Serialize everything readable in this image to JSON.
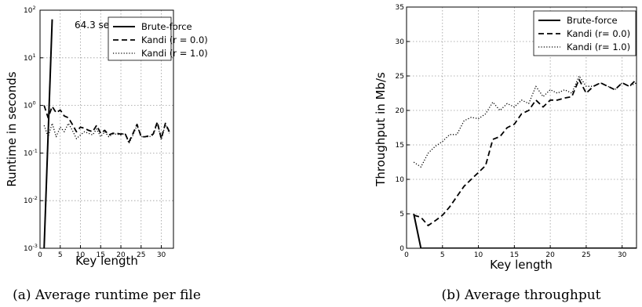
{
  "chart_data": [
    {
      "id": "a",
      "type": "line",
      "caption": "(a) Average runtime per file",
      "xlabel": "Key length",
      "ylabel": "Runtime in seconds",
      "xlim": [
        0,
        33
      ],
      "ylim": [
        0.001,
        100
      ],
      "yscale": "log",
      "x_ticks": [
        0,
        5,
        10,
        15,
        20,
        25,
        30
      ],
      "y_ticks": [
        {
          "value": 0.001,
          "base": "10",
          "exp": "-3"
        },
        {
          "value": 0.01,
          "base": "10",
          "exp": "-2"
        },
        {
          "value": 0.1,
          "base": "10",
          "exp": "-1"
        },
        {
          "value": 1,
          "base": "10",
          "exp": "0"
        },
        {
          "value": 10,
          "base": "10",
          "exp": "1"
        },
        {
          "value": 100,
          "base": "10",
          "exp": "2"
        }
      ],
      "grid": true,
      "legend_position": "top-right",
      "annotation": {
        "text": "64.3 seconds",
        "x": 4.2,
        "y": 64.3
      },
      "series": [
        {
          "name": "Brute-force",
          "style": "solid",
          "x": [
            1,
            3
          ],
          "y": [
            0.001,
            64.3
          ]
        },
        {
          "name": "Kandi (r = 0.0)",
          "style": "dashed",
          "x": [
            1,
            2,
            3,
            4,
            5,
            6,
            7,
            8,
            9,
            10,
            11,
            12,
            13,
            14,
            15,
            16,
            17,
            18,
            19,
            20,
            21,
            22,
            23,
            24,
            25,
            26,
            27,
            28,
            29,
            30,
            31,
            32
          ],
          "y": [
            1.0,
            0.55,
            0.95,
            0.7,
            0.8,
            0.6,
            0.55,
            0.4,
            0.28,
            0.35,
            0.33,
            0.3,
            0.28,
            0.38,
            0.26,
            0.3,
            0.24,
            0.26,
            0.26,
            0.25,
            0.26,
            0.17,
            0.26,
            0.4,
            0.22,
            0.22,
            0.23,
            0.25,
            0.45,
            0.2,
            0.42,
            0.28
          ]
        },
        {
          "name": "Kandi (r = 1.0)",
          "style": "dotted",
          "x": [
            1,
            2,
            3,
            4,
            5,
            6,
            7,
            8,
            9,
            10,
            11,
            12,
            13,
            14,
            15,
            16,
            17,
            18,
            19,
            20,
            21,
            22,
            23,
            24,
            25,
            26,
            27,
            28,
            29,
            30,
            31,
            32
          ],
          "y": [
            0.38,
            0.22,
            0.42,
            0.22,
            0.35,
            0.28,
            0.42,
            0.3,
            0.2,
            0.24,
            0.28,
            0.26,
            0.24,
            0.32,
            0.22,
            0.28,
            0.22,
            0.25,
            0.25,
            0.24,
            0.26,
            0.16,
            0.24,
            0.38,
            0.22,
            0.22,
            0.22,
            0.24,
            0.42,
            0.19,
            0.4,
            0.26
          ]
        }
      ]
    },
    {
      "id": "b",
      "type": "line",
      "caption": "(b) Average throughput",
      "xlabel": "Key length",
      "ylabel": "Throughput in Mb/s",
      "xlim": [
        0,
        32
      ],
      "ylim": [
        0,
        35
      ],
      "yscale": "linear",
      "x_ticks": [
        0,
        5,
        10,
        15,
        20,
        25,
        30
      ],
      "y_ticks": [
        {
          "value": 0,
          "label": "0"
        },
        {
          "value": 5,
          "label": "5"
        },
        {
          "value": 10,
          "label": "10"
        },
        {
          "value": 15,
          "label": "15"
        },
        {
          "value": 20,
          "label": "20"
        },
        {
          "value": 25,
          "label": "25"
        },
        {
          "value": 30,
          "label": "30"
        },
        {
          "value": 35,
          "label": "35"
        }
      ],
      "grid": true,
      "legend_position": "top-right",
      "series": [
        {
          "name": "Brute-force",
          "style": "solid",
          "x": [
            1,
            2,
            32
          ],
          "y": [
            5,
            0,
            0
          ]
        },
        {
          "name": "Kandi (r= 0.0)",
          "style": "dashed",
          "x": [
            1,
            2,
            3,
            4,
            5,
            6,
            7,
            8,
            9,
            10,
            11,
            12,
            13,
            14,
            15,
            16,
            17,
            18,
            19,
            20,
            21,
            22,
            23,
            24,
            25,
            26,
            27,
            28,
            29,
            30,
            31,
            32
          ],
          "y": [
            4.8,
            4.5,
            3.3,
            4.0,
            4.8,
            6.0,
            7.5,
            9.0,
            10.0,
            11.0,
            12.0,
            15.8,
            16.2,
            17.5,
            18.0,
            19.5,
            20.0,
            21.5,
            20.5,
            21.5,
            21.5,
            21.8,
            22.0,
            24.5,
            22.5,
            23.5,
            24.0,
            23.5,
            23.0,
            24.0,
            23.5,
            24.5
          ]
        },
        {
          "name": "Kandi (r= 1.0)",
          "style": "dotted",
          "x": [
            1,
            2,
            3,
            4,
            5,
            6,
            7,
            8,
            9,
            10,
            11,
            12,
            13,
            14,
            15,
            16,
            17,
            18,
            19,
            20,
            21,
            22,
            23,
            24,
            25,
            26,
            27,
            28,
            29,
            30,
            31,
            32
          ],
          "y": [
            12.5,
            11.8,
            13.8,
            14.8,
            15.5,
            16.5,
            16.5,
            18.5,
            19.0,
            18.8,
            19.5,
            21.2,
            20.0,
            21.0,
            20.5,
            21.5,
            21.0,
            23.5,
            22.0,
            23.0,
            22.5,
            23.0,
            22.5,
            25.0,
            23.5,
            23.5,
            24.0,
            23.5,
            23.0,
            24.0,
            23.5,
            24.0
          ]
        }
      ]
    }
  ]
}
